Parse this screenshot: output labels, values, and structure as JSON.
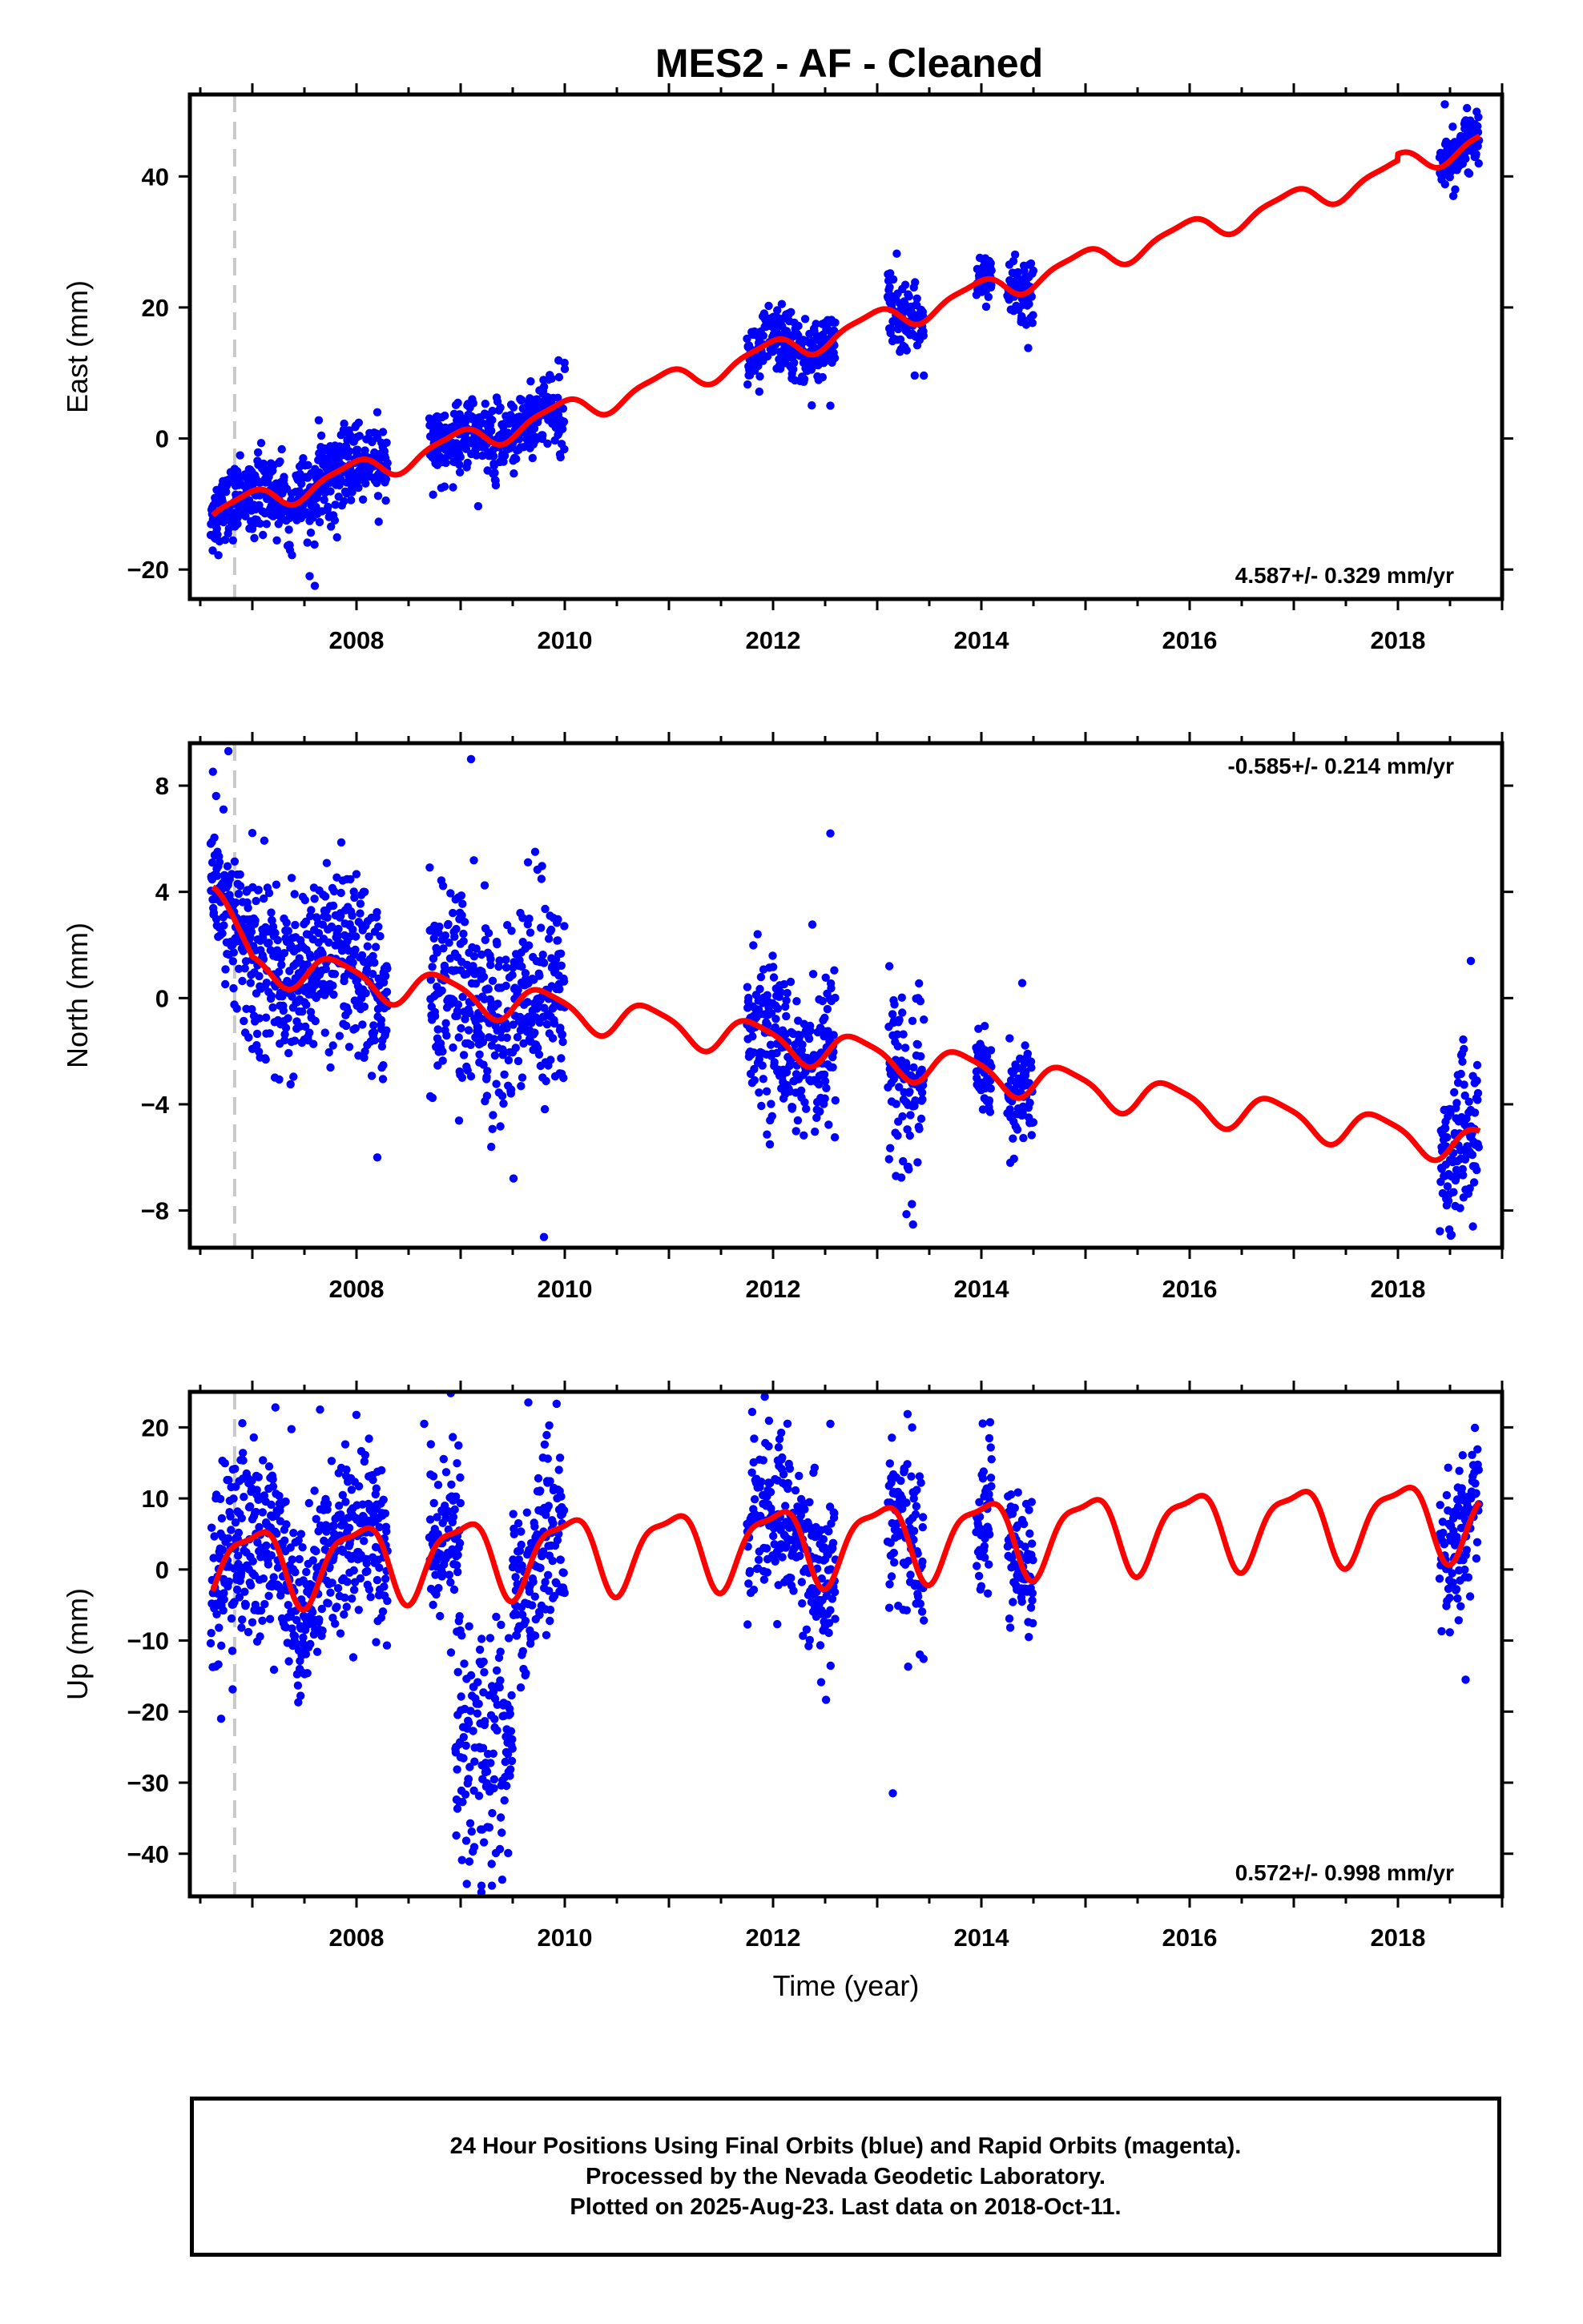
{
  "title": "MES2  - AF - Cleaned",
  "footer": {
    "line1": "24 Hour Positions Using Final Orbits (blue) and Rapid Orbits (magenta).",
    "line2": "Processed by the Nevada Geodetic Laboratory.",
    "line3": "Plotted on 2025-Aug-23. Last data on 2018-Oct-11."
  },
  "colors": {
    "points": "#0000ff",
    "fit": "#ff0000",
    "event_line": "#c8c8c8"
  },
  "chart_data": [
    {
      "type": "scatter",
      "component": "east",
      "ylabel": "East (mm)",
      "xlabel": "",
      "xlim": [
        2006.4,
        2019.0
      ],
      "ylim": [
        -24.5,
        52.5
      ],
      "yticks": [
        -20,
        0,
        20,
        40
      ],
      "xticks": [
        2008,
        2010,
        2012,
        2014,
        2016,
        2018
      ],
      "rate_label": "4.587+/- 0.329 mm/yr",
      "rate_position": "bottom-right",
      "event_line_x": 2006.83,
      "fit": {
        "rate": 4.587,
        "intercept_2006_5": -12.0,
        "annual_amp": 1.8,
        "annual_phase": 1.2,
        "semi_amp": 0.5,
        "offset_2018": 1.0
      },
      "data_segments": [
        {
          "start": 2006.6,
          "end": 2007.0,
          "scatter": 2.6
        },
        {
          "start": 2007.0,
          "end": 2008.3,
          "scatter": 3.0
        },
        {
          "start": 2008.7,
          "end": 2010.0,
          "scatter": 2.8
        },
        {
          "start": 2011.75,
          "end": 2012.6,
          "scatter": 2.4
        },
        {
          "start": 2013.1,
          "end": 2013.45,
          "scatter": 2.6
        },
        {
          "start": 2013.95,
          "end": 2014.1,
          "scatter": 1.6
        },
        {
          "start": 2014.25,
          "end": 2014.5,
          "scatter": 2.4
        },
        {
          "start": 2018.4,
          "end": 2018.78,
          "scatter": 2.0
        }
      ],
      "outliers": [
        [
          2007.6,
          -22.5
        ],
        [
          2007.55,
          -21.0
        ],
        [
          2008.2,
          4.0
        ],
        [
          2010.0,
          10.6
        ],
        [
          2012.55,
          5.0
        ],
        [
          2014.45,
          13.8
        ],
        [
          2018.55,
          38.0
        ],
        [
          2018.45,
          51.0
        ]
      ]
    },
    {
      "type": "scatter",
      "component": "north",
      "ylabel": "North (mm)",
      "xlabel": "",
      "xlim": [
        2006.4,
        2019.0
      ],
      "ylim": [
        -9.4,
        9.6
      ],
      "yticks": [
        -8,
        -4,
        0,
        4,
        8
      ],
      "xticks": [
        2008,
        2010,
        2012,
        2014,
        2016,
        2018
      ],
      "rate_label": "-0.585+/- 0.214 mm/yr",
      "rate_position": "top-right",
      "event_line_x": 2006.83,
      "fit": {
        "rate": -0.585,
        "intercept_2006_5": 1.6,
        "annual_amp": 0.65,
        "annual_phase": 0.4,
        "semi_amp": 0.15,
        "initial_excess": 2.4
      },
      "data_segments": [
        {
          "start": 2006.6,
          "end": 2007.0,
          "scatter": 1.3
        },
        {
          "start": 2007.0,
          "end": 2008.3,
          "scatter": 1.6
        },
        {
          "start": 2008.7,
          "end": 2010.0,
          "scatter": 1.9
        },
        {
          "start": 2011.75,
          "end": 2012.6,
          "scatter": 1.4
        },
        {
          "start": 2013.1,
          "end": 2013.45,
          "scatter": 1.8
        },
        {
          "start": 2013.95,
          "end": 2014.1,
          "scatter": 1.0
        },
        {
          "start": 2014.25,
          "end": 2014.5,
          "scatter": 1.2
        },
        {
          "start": 2018.4,
          "end": 2018.78,
          "scatter": 1.6
        }
      ],
      "outliers": [
        [
          2006.77,
          9.3
        ],
        [
          2009.1,
          9.0
        ],
        [
          2009.8,
          -9.0
        ],
        [
          2008.2,
          -6.0
        ],
        [
          2013.18,
          -6.7
        ],
        [
          2012.55,
          6.2
        ],
        [
          2018.7,
          1.4
        ],
        [
          2018.72,
          -8.6
        ]
      ]
    },
    {
      "type": "scatter",
      "component": "up",
      "ylabel": "Up (mm)",
      "xlabel": "Time (year)",
      "xlim": [
        2006.4,
        2019.0
      ],
      "ylim": [
        -46.0,
        25.0
      ],
      "yticks": [
        -40,
        -30,
        -20,
        -10,
        0,
        10,
        20
      ],
      "xticks": [
        2008,
        2010,
        2012,
        2014,
        2016,
        2018
      ],
      "rate_label": "0.572+/- 0.998 mm/yr",
      "rate_position": "bottom-right",
      "event_line_x": 2006.83,
      "fit": {
        "rate": 0.572,
        "intercept_2006_5": 0.5,
        "annual_amp": 5.2,
        "annual_phase": 1.0,
        "semi_amp": 1.6,
        "phase_ref": 2006.6
      },
      "data_segments": [
        {
          "start": 2006.6,
          "end": 2007.0,
          "scatter": 6.5
        },
        {
          "start": 2007.0,
          "end": 2008.3,
          "scatter": 6.0
        },
        {
          "start": 2008.7,
          "end": 2009.0,
          "scatter": 6.0
        },
        {
          "start": 2009.5,
          "end": 2010.0,
          "scatter": 6.5
        },
        {
          "start": 2011.75,
          "end": 2012.6,
          "scatter": 5.5
        },
        {
          "start": 2013.1,
          "end": 2013.45,
          "scatter": 7.0
        },
        {
          "start": 2013.95,
          "end": 2014.1,
          "scatter": 5.0
        },
        {
          "start": 2014.25,
          "end": 2014.5,
          "scatter": 5.0
        },
        {
          "start": 2018.4,
          "end": 2018.78,
          "scatter": 5.0
        }
      ],
      "anomaly_segment": {
        "start": 2008.95,
        "end": 2009.5,
        "center": -25,
        "scatter": 9
      },
      "outliers": [
        [
          2009.2,
          -44.5
        ],
        [
          2009.3,
          -44.5
        ],
        [
          2009.65,
          23.5
        ],
        [
          2008.65,
          20.5
        ],
        [
          2006.7,
          -21.0
        ],
        [
          2013.15,
          -31.5
        ],
        [
          2012.55,
          20.5
        ],
        [
          2018.65,
          -15.5
        ],
        [
          2007.65,
          22.5
        ]
      ]
    }
  ]
}
